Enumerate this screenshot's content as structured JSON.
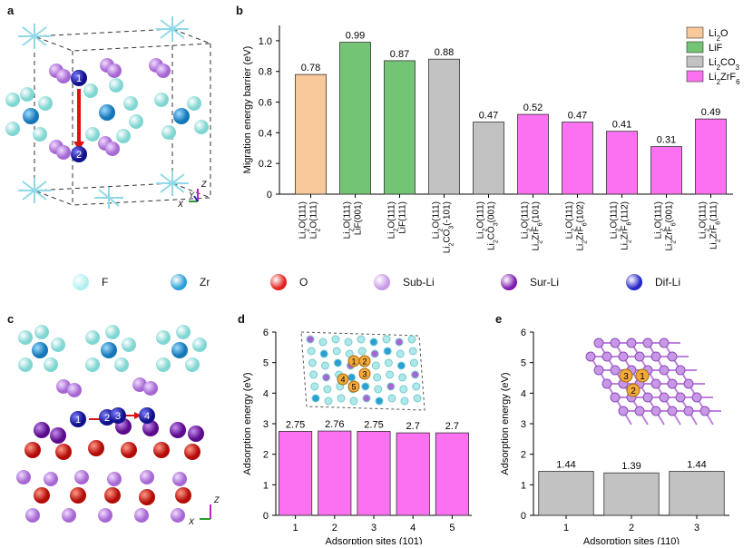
{
  "panel_labels": {
    "a": "a",
    "b": "b",
    "c": "c",
    "d": "d",
    "e": "e"
  },
  "axes_glyphs": {
    "z": "Z",
    "y": "Y",
    "x": "X"
  },
  "panel_a": {
    "markers": [
      "1",
      "2"
    ]
  },
  "panel_c": {
    "markers": [
      "1",
      "2",
      "3",
      "4"
    ]
  },
  "legend_atoms": [
    {
      "label": "F",
      "color": "#aef0ee"
    },
    {
      "label": "Zr",
      "color": "#2a9fd6"
    },
    {
      "label": "O",
      "color": "#e0201c"
    },
    {
      "label": "Sub-Li",
      "color": "#c898e6"
    },
    {
      "label": "Sur-Li",
      "color": "#7d1bb0"
    },
    {
      "label": "Dif-Li",
      "color": "#2424c8"
    }
  ],
  "chart_data": [
    {
      "type": "bar",
      "panel": "b",
      "ylabel": "Migration energy barrier (eV)",
      "ylim": [
        0,
        1.1
      ],
      "yticks": [
        "0",
        "0.2",
        "0.4",
        "0.6",
        "0.8",
        "1.0"
      ],
      "categories": [
        {
          "l1": "Li2O(111)",
          "l2": "Li2O(111)",
          "series": "Li2O"
        },
        {
          "l1": "Li2O(111)",
          "l2": "LiF(001)",
          "series": "LiF"
        },
        {
          "l1": "Li2O(111)",
          "l2": "LiF(111)",
          "series": "LiF"
        },
        {
          "l1": "Li2O(111)",
          "l2": "Li2CO3(-101)",
          "series": "Li2CO3"
        },
        {
          "l1": "Li2O(111)",
          "l2": "Li2CO3(001)",
          "series": "Li2CO3"
        },
        {
          "l1": "Li2O(111)",
          "l2": "Li2ZrF6(101)",
          "series": "Li2ZrF6"
        },
        {
          "l1": "Li2O(111)",
          "l2": "Li2ZrF6(102)",
          "series": "Li2ZrF6"
        },
        {
          "l1": "Li2O(111)",
          "l2": "Li2ZrF6(112)",
          "series": "Li2ZrF6"
        },
        {
          "l1": "Li2O(111)",
          "l2": "Li2ZrF6(001)",
          "series": "Li2ZrF6"
        },
        {
          "l1": "Li2O(111)",
          "l2": "Li2ZrF6(111)",
          "series": "Li2ZrF6"
        }
      ],
      "values": [
        0.78,
        0.99,
        0.87,
        0.88,
        0.47,
        0.52,
        0.47,
        0.41,
        0.31,
        0.49
      ],
      "value_labels": [
        "0.78",
        "0.99",
        "0.87",
        "0.88",
        "0.47",
        "0.52",
        "0.47",
        "0.41",
        "0.31",
        "0.49"
      ],
      "series": [
        {
          "name": "Li2O",
          "color": "#f9c89b"
        },
        {
          "name": "LiF",
          "color": "#74c476"
        },
        {
          "name": "Li2CO3",
          "color": "#c2c2c2"
        },
        {
          "name": "Li2ZrF6",
          "color": "#fb72f0"
        }
      ],
      "legend_position": "top-right"
    },
    {
      "type": "bar",
      "panel": "d",
      "xlabel": "Adsorption sites (101)",
      "ylabel": "Adsorption energy (eV)",
      "ylim": [
        0,
        6
      ],
      "yticks": [
        "0",
        "1",
        "2",
        "3",
        "4",
        "5",
        "6"
      ],
      "categories": [
        "1",
        "2",
        "3",
        "4",
        "5"
      ],
      "values": [
        2.75,
        2.76,
        2.75,
        2.7,
        2.7
      ],
      "value_labels": [
        "2.75",
        "2.76",
        "2.75",
        "2.7",
        "2.7"
      ],
      "color": "#fb72f0",
      "inset_sites": [
        "1",
        "2",
        "3",
        "4",
        "5"
      ]
    },
    {
      "type": "bar",
      "panel": "e",
      "xlabel": "Adsorption sites (110)",
      "ylabel": "Adsorption energy (eV)",
      "ylim": [
        0,
        6
      ],
      "yticks": [
        "0",
        "1",
        "2",
        "3",
        "4",
        "5",
        "6"
      ],
      "categories": [
        "1",
        "2",
        "3"
      ],
      "values": [
        1.44,
        1.39,
        1.44
      ],
      "value_labels": [
        "1.44",
        "1.39",
        "1.44"
      ],
      "color": "#c2c2c2",
      "inset_sites": [
        "3",
        "1",
        "2"
      ]
    }
  ]
}
